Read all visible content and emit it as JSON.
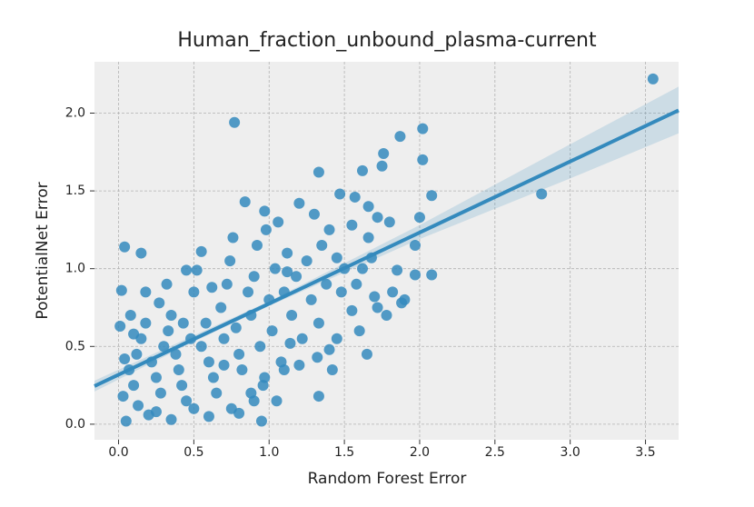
{
  "chart_data": {
    "type": "scatter",
    "title": "Human_fraction_unbound_plasma-current",
    "xlabel": "Random Forest Error",
    "ylabel": "PotentialNet Error",
    "color": "#348abd",
    "x": [
      3.55,
      2.81,
      0.77,
      2.02,
      1.87,
      2.02,
      1.76,
      1.75,
      1.33,
      1.62,
      2.08,
      0.04,
      0.02,
      0.15,
      1.33,
      2.08,
      1.97,
      1.97,
      2.0,
      1.88,
      0.01,
      1.47,
      1.57,
      1.66,
      1.72,
      1.8,
      1.66,
      1.85,
      1.72,
      1.6,
      1.55,
      1.45,
      1.4,
      1.32,
      1.2,
      1.1,
      0.97,
      0.9,
      0.8,
      0.75,
      0.95,
      0.6,
      0.5,
      0.35,
      0.2,
      0.05,
      0.03,
      0.1,
      0.07,
      0.12,
      0.15,
      0.18,
      0.08,
      0.22,
      0.25,
      0.28,
      0.3,
      0.33,
      0.35,
      0.38,
      0.4,
      0.42,
      0.45,
      0.48,
      0.5,
      0.52,
      0.55,
      0.58,
      0.6,
      0.63,
      0.65,
      0.68,
      0.7,
      0.72,
      0.74,
      0.76,
      0.78,
      0.8,
      0.82,
      0.84,
      0.86,
      0.88,
      0.9,
      0.92,
      0.94,
      0.96,
      0.98,
      1.0,
      1.02,
      1.04,
      1.06,
      1.08,
      1.1,
      1.12,
      1.15,
      1.18,
      1.2,
      1.22,
      1.25,
      1.28,
      1.3,
      1.33,
      1.35,
      1.38,
      1.4,
      1.42,
      1.45,
      1.48,
      1.5,
      1.55,
      1.58,
      1.62,
      1.65,
      1.68,
      1.7,
      1.78,
      1.82,
      1.9,
      0.13,
      0.18,
      0.27,
      0.32,
      0.43,
      0.55,
      0.62,
      0.7,
      0.88,
      1.05,
      1.14,
      0.25,
      0.45,
      0.97,
      1.12,
      0.1,
      0.04
    ],
    "values": [
      2.22,
      1.48,
      1.94,
      1.9,
      1.85,
      1.7,
      1.74,
      1.66,
      1.62,
      1.63,
      1.47,
      1.14,
      0.86,
      1.1,
      0.18,
      0.96,
      0.96,
      1.15,
      1.33,
      0.78,
      0.63,
      1.48,
      1.46,
      1.4,
      1.33,
      1.3,
      1.2,
      0.99,
      0.75,
      0.6,
      0.73,
      0.55,
      0.48,
      0.43,
      0.38,
      0.35,
      0.3,
      0.15,
      0.07,
      0.1,
      0.02,
      0.05,
      0.1,
      0.03,
      0.06,
      0.02,
      0.18,
      0.25,
      0.35,
      0.45,
      0.55,
      0.65,
      0.7,
      0.4,
      0.3,
      0.2,
      0.5,
      0.6,
      0.7,
      0.45,
      0.35,
      0.25,
      0.15,
      0.55,
      0.85,
      0.99,
      1.11,
      0.65,
      0.4,
      0.3,
      0.2,
      0.75,
      0.55,
      0.9,
      1.05,
      1.2,
      0.62,
      0.45,
      0.35,
      1.43,
      0.85,
      0.7,
      0.95,
      1.15,
      0.5,
      0.25,
      1.25,
      0.8,
      0.6,
      1.0,
      1.3,
      0.4,
      0.85,
      1.1,
      0.7,
      0.95,
      1.42,
      0.55,
      1.05,
      0.8,
      1.35,
      0.65,
      1.15,
      0.9,
      1.25,
      0.35,
      1.07,
      0.85,
      1.0,
      1.28,
      0.9,
      1.0,
      0.45,
      1.07,
      0.82,
      0.7,
      0.85,
      0.8,
      0.12,
      0.85,
      0.78,
      0.9,
      0.65,
      0.5,
      0.88,
      0.38,
      0.2,
      0.15,
      0.52,
      0.08,
      0.99,
      1.37,
      0.98,
      0.58,
      0.42
    ],
    "fit": {
      "x": [
        -0.16,
        0.5,
        1.0,
        2.0,
        3.0,
        3.72
      ],
      "values": [
        0.245,
        0.547,
        0.775,
        1.232,
        1.689,
        2.018
      ],
      "lower": [
        0.21,
        0.53,
        0.76,
        1.19,
        1.58,
        1.87
      ],
      "upper": [
        0.28,
        0.57,
        0.79,
        1.28,
        1.8,
        2.17
      ]
    },
    "xlim": [
      -0.16,
      3.72
    ],
    "ylim": [
      -0.1,
      2.33
    ],
    "xticks": [
      {
        "value": 0,
        "label": "0.0"
      },
      0.5,
      {
        "value": 1,
        "label": "1.0"
      },
      1.5,
      {
        "value": 2,
        "label": "2.0"
      },
      2.5,
      {
        "value": 3,
        "label": "3.0"
      },
      3.5
    ],
    "yticks": [
      {
        "value": 0,
        "label": "0.0"
      },
      0.5,
      {
        "value": 1,
        "label": "1.0"
      },
      1.5,
      {
        "value": 2,
        "label": "2.0"
      }
    ],
    "grid": true
  }
}
